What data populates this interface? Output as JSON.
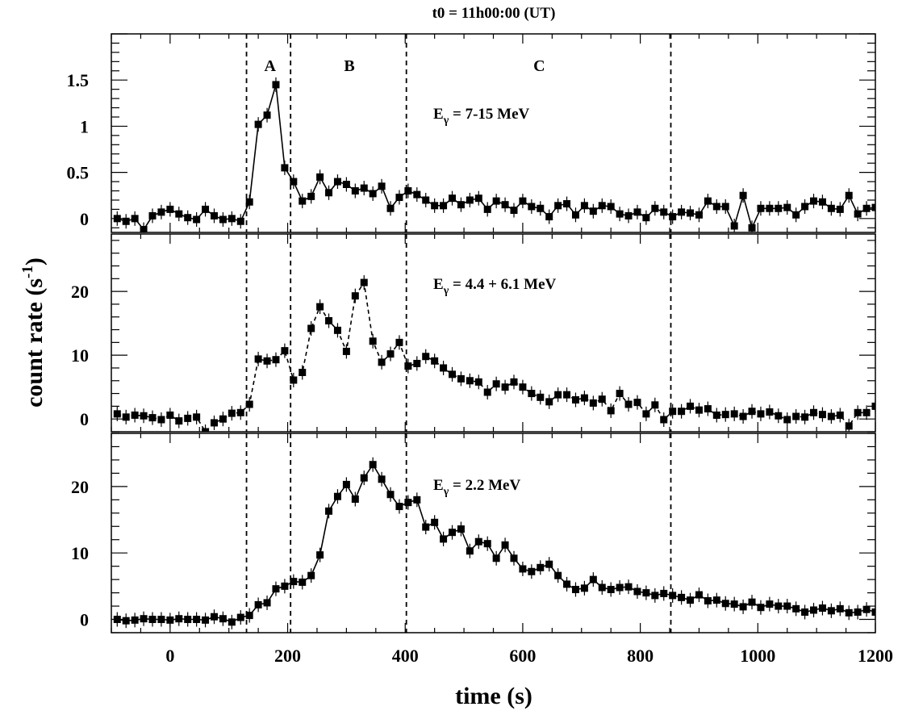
{
  "figure": {
    "title": "t0 = 11h00:00 (UT)",
    "xlabel": "time (s)",
    "ylabel_main": "count rate (s",
    "ylabel_sup": "-1",
    "ylabel_close": ")"
  },
  "chart_data": [
    {
      "type": "line",
      "panel": "top",
      "label_main": "E",
      "label_sub": "γ",
      "label_rest": " = 7-15 MeV",
      "line_style": "solid",
      "xlim": [
        -100,
        1200
      ],
      "ylim": [
        -0.15,
        2.0
      ],
      "yticks": [
        {
          "v": 0,
          "label": "0"
        },
        {
          "v": 0.5,
          "label": "0.5"
        },
        {
          "v": 1,
          "label": "1"
        },
        {
          "v": 1.5,
          "label": "1.5"
        }
      ],
      "intervals": [
        {
          "name": "A",
          "x": 170
        },
        {
          "name": "B",
          "x": 305
        },
        {
          "name": "C",
          "x": 628
        }
      ],
      "boundaries": [
        130,
        205,
        402,
        852
      ],
      "x": [
        -90,
        -75,
        -60,
        -45,
        -30,
        -15,
        0,
        15,
        30,
        45,
        60,
        75,
        90,
        105,
        120,
        135,
        150,
        165,
        180,
        195,
        210,
        225,
        240,
        255,
        270,
        285,
        300,
        315,
        330,
        345,
        360,
        375,
        390,
        405,
        420,
        435,
        450,
        465,
        480,
        495,
        510,
        525,
        540,
        555,
        570,
        585,
        600,
        615,
        630,
        645,
        660,
        675,
        690,
        705,
        720,
        735,
        750,
        765,
        780,
        795,
        810,
        825,
        840,
        855,
        870,
        885,
        900,
        915,
        930,
        945,
        960,
        975,
        990,
        1005,
        1020,
        1035,
        1050,
        1065,
        1080,
        1095,
        1110,
        1125,
        1140,
        1155,
        1170,
        1185,
        1200
      ],
      "y": [
        0.0,
        -0.03,
        0.0,
        -0.12,
        0.03,
        0.07,
        0.1,
        0.05,
        0.01,
        -0.01,
        0.1,
        0.03,
        -0.01,
        0.0,
        -0.03,
        0.18,
        1.02,
        1.12,
        1.45,
        0.55,
        0.4,
        0.19,
        0.24,
        0.45,
        0.28,
        0.4,
        0.37,
        0.3,
        0.33,
        0.27,
        0.35,
        0.11,
        0.23,
        0.3,
        0.26,
        0.2,
        0.14,
        0.14,
        0.22,
        0.15,
        0.2,
        0.22,
        0.1,
        0.19,
        0.15,
        0.09,
        0.19,
        0.13,
        0.11,
        0.02,
        0.14,
        0.16,
        0.04,
        0.14,
        0.08,
        0.14,
        0.13,
        0.05,
        0.03,
        0.07,
        0.01,
        0.11,
        0.07,
        0.02,
        0.07,
        0.06,
        0.04,
        0.19,
        0.13,
        0.13,
        -0.08,
        0.25,
        -0.1,
        0.11,
        0.11,
        0.11,
        0.12,
        0.04,
        0.13,
        0.19,
        0.18,
        0.11,
        0.1,
        0.25,
        0.05,
        0.11,
        0.12
      ]
    },
    {
      "type": "line",
      "panel": "middle",
      "label_main": "E",
      "label_sub": "γ",
      "label_rest": " = 4.4 + 6.1 MeV",
      "line_style": "dashed",
      "xlim": [
        -100,
        1200
      ],
      "ylim": [
        -2,
        29
      ],
      "yticks": [
        {
          "v": 0,
          "label": "0"
        },
        {
          "v": 10,
          "label": "10"
        },
        {
          "v": 20,
          "label": "20"
        }
      ],
      "boundaries": [
        130,
        205,
        402,
        852
      ],
      "x": [
        -90,
        -75,
        -60,
        -45,
        -30,
        -15,
        0,
        15,
        30,
        45,
        60,
        75,
        90,
        105,
        120,
        135,
        150,
        165,
        180,
        195,
        210,
        225,
        240,
        255,
        270,
        285,
        300,
        315,
        330,
        345,
        360,
        375,
        390,
        405,
        420,
        435,
        450,
        465,
        480,
        495,
        510,
        525,
        540,
        555,
        570,
        585,
        600,
        615,
        630,
        645,
        660,
        675,
        690,
        705,
        720,
        735,
        750,
        765,
        780,
        795,
        810,
        825,
        840,
        855,
        870,
        885,
        900,
        915,
        930,
        945,
        960,
        975,
        990,
        1005,
        1020,
        1035,
        1050,
        1065,
        1080,
        1095,
        1110,
        1125,
        1140,
        1155,
        1170,
        1185,
        1200
      ],
      "y": [
        0.8,
        0.3,
        0.6,
        0.5,
        0.2,
        -0.1,
        0.6,
        -0.3,
        0.1,
        0.3,
        -2.0,
        -0.6,
        0.0,
        0.9,
        1.0,
        2.3,
        9.4,
        9.1,
        9.3,
        10.7,
        6.1,
        7.3,
        14.2,
        17.6,
        15.4,
        13.9,
        10.6,
        19.3,
        21.4,
        12.2,
        8.9,
        10.2,
        12.0,
        8.3,
        8.7,
        9.8,
        9.1,
        8.0,
        7.0,
        6.3,
        6.0,
        5.8,
        4.2,
        5.5,
        5.0,
        5.8,
        5.0,
        4.0,
        3.4,
        2.7,
        3.8,
        3.8,
        3.0,
        3.3,
        2.5,
        3.1,
        1.3,
        4.0,
        2.3,
        2.6,
        0.8,
        2.2,
        -0.1,
        1.2,
        1.2,
        2.0,
        1.4,
        1.6,
        0.6,
        0.7,
        0.8,
        0.4,
        1.2,
        0.8,
        1.1,
        0.5,
        -0.1,
        0.4,
        0.3,
        1.0,
        0.7,
        0.4,
        0.6,
        -1.1,
        1.0,
        1.0,
        2.0
      ]
    },
    {
      "type": "line",
      "panel": "bottom",
      "label_main": "E",
      "label_sub": "γ",
      "label_rest": " = 2.2 MeV",
      "line_style": "solid",
      "xlim": [
        -100,
        1200
      ],
      "ylim": [
        -2,
        28
      ],
      "yticks": [
        {
          "v": 0,
          "label": "0"
        },
        {
          "v": 10,
          "label": "10"
        },
        {
          "v": 20,
          "label": "20"
        }
      ],
      "xticks": [
        {
          "v": 0,
          "label": "0"
        },
        {
          "v": 200,
          "label": "200"
        },
        {
          "v": 400,
          "label": "400"
        },
        {
          "v": 600,
          "label": "600"
        },
        {
          "v": 800,
          "label": "800"
        },
        {
          "v": 1000,
          "label": "1000"
        },
        {
          "v": 1200,
          "label": "1200"
        }
      ],
      "boundaries": [
        130,
        205,
        402,
        852
      ],
      "x": [
        -90,
        -75,
        -60,
        -45,
        -30,
        -15,
        0,
        15,
        30,
        45,
        60,
        75,
        90,
        105,
        120,
        135,
        150,
        165,
        180,
        195,
        210,
        225,
        240,
        255,
        270,
        285,
        300,
        315,
        330,
        345,
        360,
        375,
        390,
        405,
        420,
        435,
        450,
        465,
        480,
        495,
        510,
        525,
        540,
        555,
        570,
        585,
        600,
        615,
        630,
        645,
        660,
        675,
        690,
        705,
        720,
        735,
        750,
        765,
        780,
        795,
        810,
        825,
        840,
        855,
        870,
        885,
        900,
        915,
        930,
        945,
        960,
        975,
        990,
        1005,
        1020,
        1035,
        1050,
        1065,
        1080,
        1095,
        1110,
        1125,
        1140,
        1155,
        1170,
        1185,
        1200
      ],
      "y": [
        0.0,
        -0.2,
        -0.1,
        0.1,
        0.0,
        0.0,
        -0.1,
        0.1,
        0.0,
        0.0,
        -0.1,
        0.4,
        0.1,
        -0.4,
        0.3,
        0.6,
        2.2,
        2.5,
        4.6,
        5.0,
        5.7,
        5.6,
        6.6,
        9.7,
        16.3,
        18.5,
        20.3,
        18.1,
        21.3,
        23.3,
        21.1,
        18.8,
        17.0,
        17.6,
        18.0,
        13.9,
        14.6,
        12.1,
        13.1,
        13.6,
        10.3,
        11.7,
        11.4,
        9.2,
        11.2,
        9.2,
        7.6,
        7.2,
        7.8,
        8.3,
        6.6,
        5.3,
        4.5,
        4.7,
        6.0,
        4.8,
        4.5,
        4.8,
        4.9,
        4.2,
        4.0,
        3.6,
        3.9,
        3.6,
        3.3,
        2.9,
        3.7,
        2.8,
        2.9,
        2.4,
        2.3,
        1.9,
        2.6,
        1.8,
        2.3,
        2.0,
        2.0,
        1.6,
        1.1,
        1.4,
        1.7,
        1.3,
        1.6,
        1.0,
        1.1,
        1.5,
        1.1
      ]
    }
  ]
}
